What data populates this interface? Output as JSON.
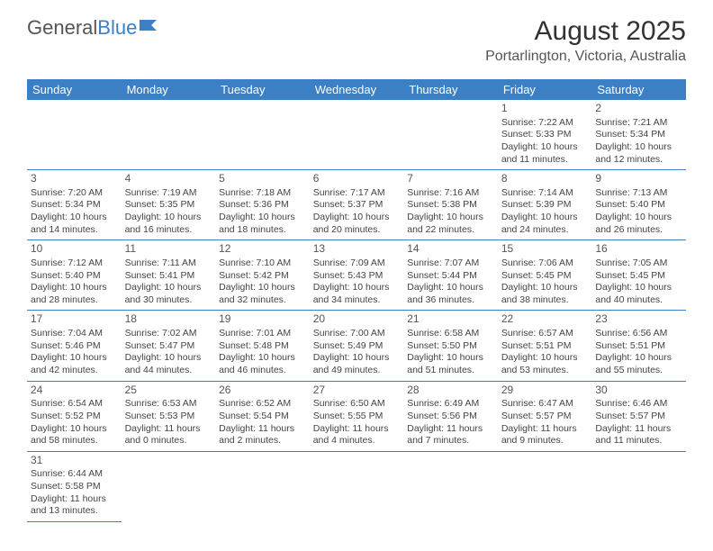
{
  "logo": {
    "text1": "General",
    "text2": "Blue"
  },
  "title": "August 2025",
  "location": "Portarlington, Victoria, Australia",
  "colors": {
    "accent": "#3b7fc4",
    "text": "#333333",
    "bg": "#ffffff"
  },
  "weekdays": [
    "Sunday",
    "Monday",
    "Tuesday",
    "Wednesday",
    "Thursday",
    "Friday",
    "Saturday"
  ],
  "weeks": [
    [
      null,
      null,
      null,
      null,
      null,
      {
        "d": "1",
        "sr": "Sunrise: 7:22 AM",
        "ss": "Sunset: 5:33 PM",
        "dl1": "Daylight: 10 hours",
        "dl2": "and 11 minutes."
      },
      {
        "d": "2",
        "sr": "Sunrise: 7:21 AM",
        "ss": "Sunset: 5:34 PM",
        "dl1": "Daylight: 10 hours",
        "dl2": "and 12 minutes."
      }
    ],
    [
      {
        "d": "3",
        "sr": "Sunrise: 7:20 AM",
        "ss": "Sunset: 5:34 PM",
        "dl1": "Daylight: 10 hours",
        "dl2": "and 14 minutes."
      },
      {
        "d": "4",
        "sr": "Sunrise: 7:19 AM",
        "ss": "Sunset: 5:35 PM",
        "dl1": "Daylight: 10 hours",
        "dl2": "and 16 minutes."
      },
      {
        "d": "5",
        "sr": "Sunrise: 7:18 AM",
        "ss": "Sunset: 5:36 PM",
        "dl1": "Daylight: 10 hours",
        "dl2": "and 18 minutes."
      },
      {
        "d": "6",
        "sr": "Sunrise: 7:17 AM",
        "ss": "Sunset: 5:37 PM",
        "dl1": "Daylight: 10 hours",
        "dl2": "and 20 minutes."
      },
      {
        "d": "7",
        "sr": "Sunrise: 7:16 AM",
        "ss": "Sunset: 5:38 PM",
        "dl1": "Daylight: 10 hours",
        "dl2": "and 22 minutes."
      },
      {
        "d": "8",
        "sr": "Sunrise: 7:14 AM",
        "ss": "Sunset: 5:39 PM",
        "dl1": "Daylight: 10 hours",
        "dl2": "and 24 minutes."
      },
      {
        "d": "9",
        "sr": "Sunrise: 7:13 AM",
        "ss": "Sunset: 5:40 PM",
        "dl1": "Daylight: 10 hours",
        "dl2": "and 26 minutes."
      }
    ],
    [
      {
        "d": "10",
        "sr": "Sunrise: 7:12 AM",
        "ss": "Sunset: 5:40 PM",
        "dl1": "Daylight: 10 hours",
        "dl2": "and 28 minutes."
      },
      {
        "d": "11",
        "sr": "Sunrise: 7:11 AM",
        "ss": "Sunset: 5:41 PM",
        "dl1": "Daylight: 10 hours",
        "dl2": "and 30 minutes."
      },
      {
        "d": "12",
        "sr": "Sunrise: 7:10 AM",
        "ss": "Sunset: 5:42 PM",
        "dl1": "Daylight: 10 hours",
        "dl2": "and 32 minutes."
      },
      {
        "d": "13",
        "sr": "Sunrise: 7:09 AM",
        "ss": "Sunset: 5:43 PM",
        "dl1": "Daylight: 10 hours",
        "dl2": "and 34 minutes."
      },
      {
        "d": "14",
        "sr": "Sunrise: 7:07 AM",
        "ss": "Sunset: 5:44 PM",
        "dl1": "Daylight: 10 hours",
        "dl2": "and 36 minutes."
      },
      {
        "d": "15",
        "sr": "Sunrise: 7:06 AM",
        "ss": "Sunset: 5:45 PM",
        "dl1": "Daylight: 10 hours",
        "dl2": "and 38 minutes."
      },
      {
        "d": "16",
        "sr": "Sunrise: 7:05 AM",
        "ss": "Sunset: 5:45 PM",
        "dl1": "Daylight: 10 hours",
        "dl2": "and 40 minutes."
      }
    ],
    [
      {
        "d": "17",
        "sr": "Sunrise: 7:04 AM",
        "ss": "Sunset: 5:46 PM",
        "dl1": "Daylight: 10 hours",
        "dl2": "and 42 minutes."
      },
      {
        "d": "18",
        "sr": "Sunrise: 7:02 AM",
        "ss": "Sunset: 5:47 PM",
        "dl1": "Daylight: 10 hours",
        "dl2": "and 44 minutes."
      },
      {
        "d": "19",
        "sr": "Sunrise: 7:01 AM",
        "ss": "Sunset: 5:48 PM",
        "dl1": "Daylight: 10 hours",
        "dl2": "and 46 minutes."
      },
      {
        "d": "20",
        "sr": "Sunrise: 7:00 AM",
        "ss": "Sunset: 5:49 PM",
        "dl1": "Daylight: 10 hours",
        "dl2": "and 49 minutes."
      },
      {
        "d": "21",
        "sr": "Sunrise: 6:58 AM",
        "ss": "Sunset: 5:50 PM",
        "dl1": "Daylight: 10 hours",
        "dl2": "and 51 minutes."
      },
      {
        "d": "22",
        "sr": "Sunrise: 6:57 AM",
        "ss": "Sunset: 5:51 PM",
        "dl1": "Daylight: 10 hours",
        "dl2": "and 53 minutes."
      },
      {
        "d": "23",
        "sr": "Sunrise: 6:56 AM",
        "ss": "Sunset: 5:51 PM",
        "dl1": "Daylight: 10 hours",
        "dl2": "and 55 minutes."
      }
    ],
    [
      {
        "d": "24",
        "sr": "Sunrise: 6:54 AM",
        "ss": "Sunset: 5:52 PM",
        "dl1": "Daylight: 10 hours",
        "dl2": "and 58 minutes."
      },
      {
        "d": "25",
        "sr": "Sunrise: 6:53 AM",
        "ss": "Sunset: 5:53 PM",
        "dl1": "Daylight: 11 hours",
        "dl2": "and 0 minutes."
      },
      {
        "d": "26",
        "sr": "Sunrise: 6:52 AM",
        "ss": "Sunset: 5:54 PM",
        "dl1": "Daylight: 11 hours",
        "dl2": "and 2 minutes."
      },
      {
        "d": "27",
        "sr": "Sunrise: 6:50 AM",
        "ss": "Sunset: 5:55 PM",
        "dl1": "Daylight: 11 hours",
        "dl2": "and 4 minutes."
      },
      {
        "d": "28",
        "sr": "Sunrise: 6:49 AM",
        "ss": "Sunset: 5:56 PM",
        "dl1": "Daylight: 11 hours",
        "dl2": "and 7 minutes."
      },
      {
        "d": "29",
        "sr": "Sunrise: 6:47 AM",
        "ss": "Sunset: 5:57 PM",
        "dl1": "Daylight: 11 hours",
        "dl2": "and 9 minutes."
      },
      {
        "d": "30",
        "sr": "Sunrise: 6:46 AM",
        "ss": "Sunset: 5:57 PM",
        "dl1": "Daylight: 11 hours",
        "dl2": "and 11 minutes."
      }
    ],
    [
      {
        "d": "31",
        "sr": "Sunrise: 6:44 AM",
        "ss": "Sunset: 5:58 PM",
        "dl1": "Daylight: 11 hours",
        "dl2": "and 13 minutes."
      },
      null,
      null,
      null,
      null,
      null,
      null
    ]
  ]
}
